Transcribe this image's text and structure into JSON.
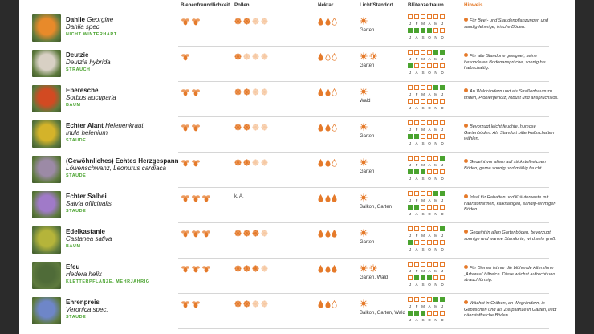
{
  "header": {
    "biene": "Bienenfreundlichkeit",
    "pollen": "Pollen",
    "nektar": "Nektar",
    "licht": "Licht/Standort",
    "bluete": "Blütenzeitraum",
    "hinweis": "Hinweis"
  },
  "month_labels_top": [
    "J",
    "F",
    "M",
    "A",
    "M",
    "J"
  ],
  "month_labels_bottom": [
    "J",
    "A",
    "S",
    "O",
    "N",
    "D"
  ],
  "colors": {
    "accent_orange": "#e57a2a",
    "category_green": "#4aa32f",
    "bloom_green": "#4aa32f"
  },
  "plants": [
    {
      "name": "Dahlie",
      "common_suffix": "Georgine",
      "latin": "Dahlia spec.",
      "category": "NICHT WINTERHART",
      "photo_color": "#e88a2a",
      "bees": 2,
      "pollen": 2,
      "pollen_text": "",
      "nectar": 2,
      "light_icons": "sun",
      "light_text": "Garten",
      "bloom": [
        0,
        0,
        0,
        0,
        0,
        0,
        1,
        1,
        1,
        1,
        0,
        0
      ],
      "hint": "Für Beet- und Staudenpflanzungen und sandig-lehmige, frische Böden."
    },
    {
      "name": "Deutzie",
      "common_suffix": "",
      "latin": "Deutzia hybrida",
      "category": "STRAUCH",
      "photo_color": "#d8d0c4",
      "bees": 1,
      "pollen": 1,
      "pollen_text": "",
      "nectar": 1,
      "light_icons": "sun-half",
      "light_text": "Garten",
      "bloom": [
        0,
        0,
        0,
        0,
        1,
        1,
        1,
        0,
        0,
        0,
        0,
        0
      ],
      "hint": "Für alle Standorte geeignet, keine besonderen Bodenansprüche, sonnig bis halbschattig."
    },
    {
      "name": "Eberesche",
      "common_suffix": "",
      "latin": "Sorbus aucuparia",
      "category": "BAUM",
      "photo_color": "#d24a22",
      "bees": 2,
      "pollen": 2,
      "pollen_text": "",
      "nectar": 2,
      "light_icons": "sun",
      "light_text": "Wald",
      "bloom": [
        0,
        0,
        0,
        0,
        1,
        1,
        0,
        0,
        0,
        0,
        0,
        0
      ],
      "hint": "An Waldrändern und als Straßenbaum zu finden, Pionierge­hölz, robust und anspruchslos."
    },
    {
      "name": "Echter Alant",
      "common_suffix": "Helenenkraut",
      "latin": "Inula helenium",
      "category": "STAUDE",
      "photo_color": "#d4b32a",
      "bees": 2,
      "pollen": 2,
      "pollen_text": "",
      "nectar": 2,
      "light_icons": "sun",
      "light_text": "Garten",
      "bloom": [
        0,
        0,
        0,
        0,
        0,
        0,
        1,
        1,
        0,
        0,
        0,
        0
      ],
      "hint": "Bevorzugt leicht feuchte, humose Gartenböden. Als Standort bitte Halbschatten wählen."
    },
    {
      "name": "(Gewöhnliches) Echtes Herzgespann",
      "common_suffix": "",
      "latin": "Löwenschwanz, Leonurus cardiaca",
      "category": "STAUDE",
      "photo_color": "#9c8aa6",
      "bees": 2,
      "pollen": 2,
      "pollen_text": "",
      "nectar": 2,
      "light_icons": "sun",
      "light_text": "Garten",
      "bloom": [
        0,
        0,
        0,
        0,
        0,
        1,
        1,
        1,
        1,
        0,
        0,
        0
      ],
      "hint": "Gedeiht vor allem auf stickstoffreichen Böden, gerne sonnig und mäßig feucht."
    },
    {
      "name": "Echter Salbei",
      "common_suffix": "",
      "latin": "Salvia officinalis",
      "category": "STAUDE",
      "photo_color": "#a07ac8",
      "bees": 3,
      "pollen": 0,
      "pollen_text": "k. A.",
      "nectar": 3,
      "light_icons": "sun",
      "light_text": "Balkon, Garten",
      "bloom": [
        0,
        0,
        0,
        0,
        1,
        1,
        1,
        1,
        0,
        0,
        0,
        0
      ],
      "hint": "Ideal für Rabatten und Kräuterbeete mit nährstoffarmen, kalkhaltigen, sandig-lehmigen Böden."
    },
    {
      "name": "Edelkastanie",
      "common_suffix": "",
      "latin": "Castanea sativa",
      "category": "BAUM",
      "photo_color": "#b5b43a",
      "bees": 3,
      "pollen": 3,
      "pollen_text": "",
      "nectar": 3,
      "light_icons": "sun",
      "light_text": "Garten",
      "bloom": [
        0,
        0,
        0,
        0,
        0,
        1,
        1,
        0,
        0,
        0,
        0,
        0
      ],
      "hint": "Gedeiht in allen Gartenböden, bevorzugt sonnige und warme Standorte, wird sehr groß."
    },
    {
      "name": "Efeu",
      "common_suffix": "",
      "latin": "Hedera helix",
      "category": "KLETTERPFLANZE, MEHRJÄHRIG",
      "photo_color": "#4f6b38",
      "bees": 3,
      "pollen": 3,
      "pollen_text": "",
      "nectar": 3,
      "light_icons": "sun-half",
      "light_text": "Garten, Wald",
      "bloom": [
        0,
        0,
        0,
        0,
        0,
        0,
        0,
        1,
        1,
        1,
        0,
        0
      ],
      "hint": "Für Bienen ist nur die blühende Altersform „Arborea“ hilfreich. Diese wächst aufrecht und strauchförmig."
    },
    {
      "name": "Ehrenpreis",
      "common_suffix": "",
      "latin": "Veronica spec.",
      "category": "STAUDE",
      "photo_color": "#6e86c8",
      "bees": 2,
      "pollen": 2,
      "pollen_text": "",
      "nectar": 2,
      "light_icons": "sun",
      "light_text": "Balkon, Garten, Wald",
      "bloom": [
        0,
        0,
        0,
        0,
        1,
        1,
        1,
        1,
        1,
        0,
        0,
        0
      ],
      "hint": "Wächst in Gräben, an Wegrändern, in Gebüschen und als Zierpflanze in Gärten, liebt nährstoffreiche Böden."
    }
  ]
}
